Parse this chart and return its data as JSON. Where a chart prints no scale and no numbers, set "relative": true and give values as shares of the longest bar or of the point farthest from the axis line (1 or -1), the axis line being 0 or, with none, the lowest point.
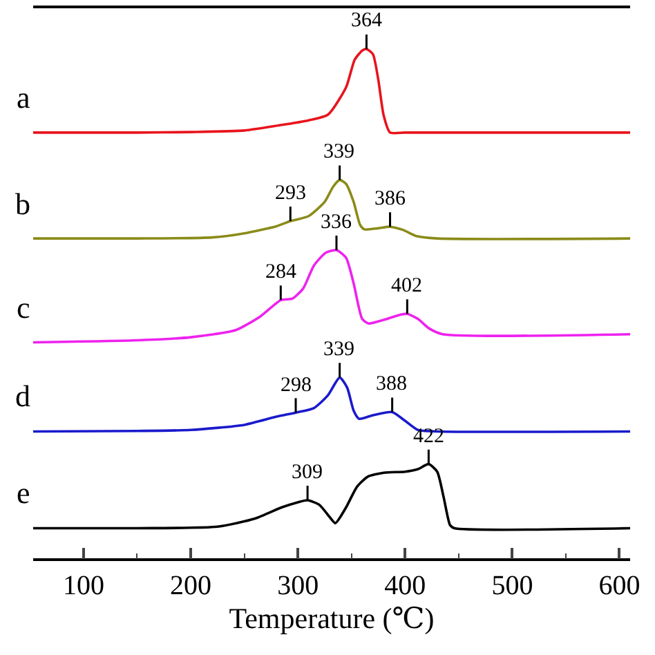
{
  "chart_data": {
    "type": "line",
    "relative": true,
    "xlabel": "Temperature (℃)",
    "xlim": [
      53,
      610
    ],
    "xticks": [
      100,
      200,
      300,
      400,
      500,
      600
    ],
    "grid": false,
    "legend": false,
    "series": [
      {
        "name": "a",
        "color": "#e8141c",
        "x": [
          53,
          150,
          200,
          250,
          282,
          310,
          328,
          345,
          353,
          360,
          364,
          370,
          375,
          380,
          386,
          400,
          500,
          610
        ],
        "values": [
          0.836,
          0.836,
          0.837,
          0.84,
          0.85,
          0.86,
          0.871,
          0.925,
          0.979,
          0.997,
          1.0,
          0.99,
          0.94,
          0.87,
          0.836,
          0.836,
          0.836,
          0.836
        ]
      },
      {
        "name": "b",
        "color": "#8b8b1a",
        "x": [
          53,
          150,
          220,
          250,
          280,
          293,
          310,
          325,
          333,
          339,
          345,
          352,
          358,
          362,
          375,
          386,
          398,
          410,
          430,
          610
        ],
        "values": [
          0.628,
          0.628,
          0.63,
          0.638,
          0.652,
          0.662,
          0.672,
          0.7,
          0.73,
          0.743,
          0.735,
          0.7,
          0.655,
          0.646,
          0.648,
          0.651,
          0.645,
          0.633,
          0.628,
          0.628
        ]
      },
      {
        "name": "c",
        "color": "#ee22ee",
        "x": [
          53,
          150,
          200,
          242,
          265,
          284,
          295,
          305,
          315,
          326,
          336,
          345,
          352,
          360,
          366,
          380,
          395,
          402,
          412,
          422,
          435,
          610
        ],
        "values": [
          0.424,
          0.428,
          0.434,
          0.448,
          0.475,
          0.507,
          0.51,
          0.53,
          0.575,
          0.6,
          0.605,
          0.59,
          0.54,
          0.47,
          0.461,
          0.468,
          0.478,
          0.48,
          0.47,
          0.452,
          0.44,
          0.44
        ]
      },
      {
        "name": "d",
        "color": "#1a1acc",
        "x": [
          53,
          150,
          200,
          250,
          280,
          298,
          315,
          328,
          339,
          346,
          352,
          357,
          370,
          388,
          400,
          412,
          430,
          610
        ],
        "values": [
          0.249,
          0.25,
          0.252,
          0.262,
          0.278,
          0.286,
          0.295,
          0.32,
          0.355,
          0.335,
          0.29,
          0.274,
          0.281,
          0.287,
          0.27,
          0.252,
          0.249,
          0.249
        ]
      },
      {
        "name": "e",
        "color": "#000000",
        "x": [
          53,
          150,
          225,
          260,
          285,
          300,
          309,
          320,
          330,
          335,
          345,
          355,
          365,
          380,
          400,
          412,
          422,
          430,
          436,
          442,
          446,
          610
        ],
        "values": [
          0.059,
          0.059,
          0.062,
          0.078,
          0.1,
          0.11,
          0.114,
          0.105,
          0.08,
          0.069,
          0.1,
          0.14,
          0.16,
          0.168,
          0.17,
          0.175,
          0.185,
          0.17,
          0.12,
          0.065,
          0.059,
          0.059
        ]
      }
    ],
    "annotations": [
      {
        "text": "364",
        "x": 364,
        "y": 1.0
      },
      {
        "text": "293",
        "x": 293,
        "y": 0.662
      },
      {
        "text": "339",
        "x": 339,
        "y": 0.743
      },
      {
        "text": "386",
        "x": 386,
        "y": 0.651
      },
      {
        "text": "284",
        "x": 284,
        "y": 0.507
      },
      {
        "text": "336",
        "x": 336,
        "y": 0.605
      },
      {
        "text": "402",
        "x": 402,
        "y": 0.48
      },
      {
        "text": "298",
        "x": 298,
        "y": 0.286
      },
      {
        "text": "339",
        "x": 339,
        "y": 0.355
      },
      {
        "text": "388",
        "x": 388,
        "y": 0.287
      },
      {
        "text": "309",
        "x": 309,
        "y": 0.114
      },
      {
        "text": "422",
        "x": 422,
        "y": 0.185
      }
    ]
  }
}
